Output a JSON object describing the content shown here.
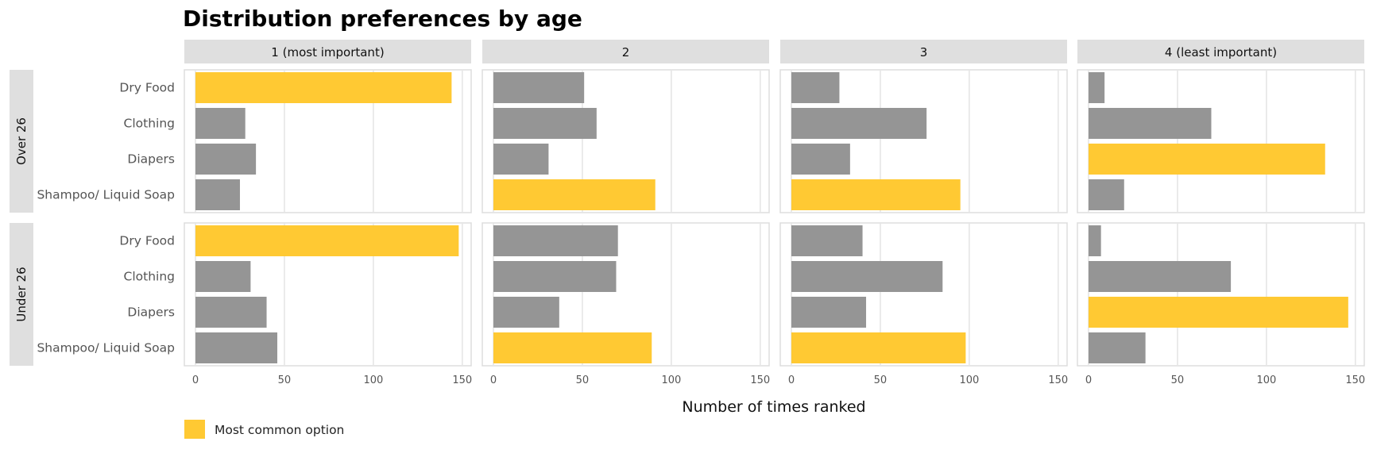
{
  "chart_data": {
    "type": "bar",
    "orientation": "horizontal",
    "title": "Distribution preferences by age",
    "xlabel": "Number of times ranked",
    "ylabel": "",
    "xlim": [
      0,
      155
    ],
    "xticks": [
      0,
      50,
      100,
      150
    ],
    "categories": [
      "Dry Food",
      "Clothing",
      "Diapers",
      "Shampoo/ Liquid Soap"
    ],
    "columns": [
      "1 (most important)",
      "2",
      "3",
      "4 (least important)"
    ],
    "rows": [
      {
        "name": "Over 26",
        "values": [
          [
            144,
            28,
            34,
            25
          ],
          [
            51,
            58,
            31,
            91
          ],
          [
            27,
            76,
            33,
            95
          ],
          [
            9,
            69,
            133,
            20
          ]
        ]
      },
      {
        "name": "Under 26",
        "values": [
          [
            148,
            31,
            40,
            46
          ],
          [
            70,
            69,
            37,
            89
          ],
          [
            40,
            85,
            42,
            98
          ],
          [
            7,
            80,
            146,
            32
          ]
        ]
      }
    ],
    "grid": true,
    "highlight_rule": "Most common option",
    "colors": {
      "highlight": "#FFC933",
      "default": "#959595",
      "strip": "#DFDFDF",
      "grid": "#E4E4E4",
      "border": "#DDDDDD"
    },
    "legend": {
      "position": "bottom-left",
      "label": "Most common option"
    }
  }
}
